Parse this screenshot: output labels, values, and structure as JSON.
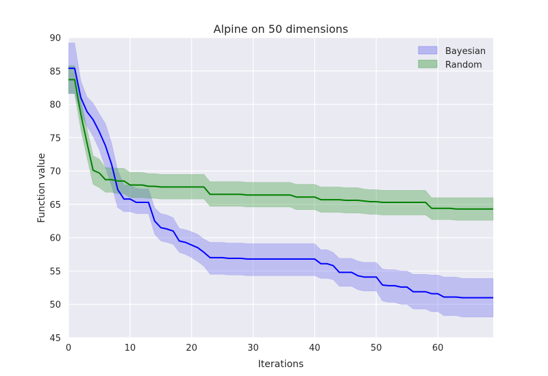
{
  "chart_data": {
    "type": "line",
    "title": "Alpine on 50 dimensions",
    "xlabel": "Iterations",
    "ylabel": "Function value",
    "xlim": [
      0,
      69
    ],
    "ylim": [
      45,
      90
    ],
    "xticks": [
      "0",
      "10",
      "20",
      "30",
      "40",
      "50",
      "60"
    ],
    "yticks": [
      "45",
      "50",
      "55",
      "60",
      "65",
      "70",
      "75",
      "80",
      "85",
      "90"
    ],
    "grid": true,
    "legend_position": "top-right",
    "series": [
      {
        "name": "Bayesian",
        "color": "#0000ff",
        "band_color": "#6e6ef0",
        "x": [
          0,
          1,
          2,
          3,
          4,
          5,
          6,
          7,
          8,
          9,
          10,
          11,
          12,
          13,
          14,
          15,
          16,
          17,
          18,
          19,
          20,
          21,
          22,
          23,
          24,
          25,
          26,
          27,
          28,
          29,
          30,
          31,
          32,
          33,
          34,
          35,
          36,
          37,
          38,
          39,
          40,
          41,
          42,
          43,
          44,
          45,
          46,
          47,
          48,
          49,
          50,
          51,
          52,
          53,
          54,
          55,
          56,
          57,
          58,
          59,
          60,
          61,
          62,
          63,
          64,
          65,
          66,
          67,
          68,
          69
        ],
        "values": [
          85.4,
          85.4,
          81.0,
          78.9,
          77.7,
          75.9,
          73.8,
          71.0,
          67.2,
          65.8,
          65.8,
          65.3,
          65.3,
          65.3,
          62.5,
          61.5,
          61.3,
          61.0,
          59.5,
          59.3,
          58.9,
          58.5,
          57.8,
          57.0,
          57.0,
          57.0,
          56.9,
          56.9,
          56.9,
          56.8,
          56.8,
          56.8,
          56.8,
          56.8,
          56.8,
          56.8,
          56.8,
          56.8,
          56.8,
          56.8,
          56.8,
          56.1,
          56.1,
          55.8,
          54.8,
          54.8,
          54.8,
          54.3,
          54.1,
          54.1,
          54.1,
          52.9,
          52.8,
          52.8,
          52.6,
          52.6,
          51.9,
          51.9,
          51.9,
          51.6,
          51.6,
          51.1,
          51.1,
          51.1,
          51.0,
          51.0,
          51.0,
          51.0,
          51.0,
          51.0
        ],
        "upper": [
          89.2,
          89.2,
          83.5,
          81.1,
          80.2,
          78.6,
          77.1,
          74.2,
          70.1,
          67.9,
          67.9,
          67.4,
          67.3,
          67.3,
          64.5,
          63.6,
          63.4,
          63.0,
          61.4,
          61.2,
          60.9,
          60.5,
          59.8,
          59.3,
          59.3,
          59.3,
          59.2,
          59.2,
          59.2,
          59.1,
          59.1,
          59.1,
          59.1,
          59.1,
          59.1,
          59.1,
          59.1,
          59.1,
          59.1,
          59.1,
          59.1,
          58.2,
          58.2,
          57.8,
          56.9,
          56.9,
          56.9,
          56.5,
          56.3,
          56.3,
          56.3,
          55.3,
          55.2,
          55.2,
          55.0,
          55.0,
          54.5,
          54.5,
          54.5,
          54.4,
          54.4,
          54.1,
          54.1,
          54.1,
          53.9,
          53.9,
          53.9,
          53.9,
          53.9,
          53.9
        ],
        "lower": [
          81.6,
          81.6,
          78.5,
          76.7,
          75.2,
          73.2,
          70.5,
          67.8,
          64.5,
          63.9,
          63.9,
          63.6,
          63.6,
          63.6,
          60.5,
          59.5,
          59.3,
          59.0,
          57.8,
          57.5,
          57.0,
          56.4,
          55.7,
          54.5,
          54.5,
          54.5,
          54.4,
          54.4,
          54.4,
          54.3,
          54.3,
          54.3,
          54.3,
          54.3,
          54.3,
          54.3,
          54.3,
          54.3,
          54.3,
          54.3,
          54.3,
          53.9,
          53.9,
          53.7,
          52.7,
          52.7,
          52.7,
          52.2,
          52.0,
          52.0,
          52.0,
          50.5,
          50.3,
          50.3,
          50.0,
          50.0,
          49.3,
          49.3,
          49.3,
          48.9,
          48.9,
          48.3,
          48.3,
          48.3,
          48.1,
          48.1,
          48.1,
          48.1,
          48.1,
          48.1
        ]
      },
      {
        "name": "Random",
        "color": "#008000",
        "band_color": "#3a9a3a",
        "x": [
          0,
          1,
          2,
          3,
          4,
          5,
          6,
          7,
          8,
          9,
          10,
          11,
          12,
          13,
          14,
          15,
          16,
          17,
          18,
          19,
          20,
          21,
          22,
          23,
          24,
          25,
          26,
          27,
          28,
          29,
          30,
          31,
          32,
          33,
          34,
          35,
          36,
          37,
          38,
          39,
          40,
          41,
          42,
          43,
          44,
          45,
          46,
          47,
          48,
          49,
          50,
          51,
          52,
          53,
          54,
          55,
          56,
          57,
          58,
          59,
          60,
          61,
          62,
          63,
          64,
          65,
          66,
          67,
          68,
          69
        ],
        "values": [
          83.7,
          83.7,
          78.5,
          74.2,
          70.1,
          69.7,
          68.7,
          68.7,
          68.5,
          68.5,
          67.9,
          67.9,
          67.9,
          67.7,
          67.7,
          67.6,
          67.6,
          67.6,
          67.6,
          67.6,
          67.6,
          67.6,
          67.6,
          66.5,
          66.5,
          66.5,
          66.5,
          66.5,
          66.5,
          66.4,
          66.4,
          66.4,
          66.4,
          66.4,
          66.4,
          66.4,
          66.4,
          66.1,
          66.1,
          66.1,
          66.1,
          65.7,
          65.7,
          65.7,
          65.7,
          65.6,
          65.6,
          65.6,
          65.5,
          65.4,
          65.4,
          65.3,
          65.3,
          65.3,
          65.3,
          65.3,
          65.3,
          65.3,
          65.3,
          64.4,
          64.4,
          64.4,
          64.4,
          64.3,
          64.3,
          64.3,
          64.3,
          64.3,
          64.3,
          64.3
        ],
        "upper": [
          85.8,
          85.8,
          80.7,
          76.4,
          72.3,
          71.8,
          70.5,
          70.5,
          70.4,
          70.4,
          69.8,
          69.8,
          69.8,
          69.6,
          69.6,
          69.5,
          69.5,
          69.5,
          69.5,
          69.5,
          69.5,
          69.5,
          69.5,
          68.4,
          68.4,
          68.4,
          68.4,
          68.4,
          68.4,
          68.3,
          68.3,
          68.3,
          68.3,
          68.3,
          68.3,
          68.3,
          68.3,
          68.0,
          68.0,
          68.0,
          68.0,
          67.6,
          67.6,
          67.6,
          67.6,
          67.5,
          67.5,
          67.5,
          67.3,
          67.2,
          67.2,
          67.1,
          67.1,
          67.1,
          67.1,
          67.1,
          67.1,
          67.1,
          67.1,
          66.0,
          66.0,
          66.0,
          66.0,
          66.0,
          66.0,
          66.0,
          66.0,
          66.0,
          66.0,
          66.0
        ],
        "lower": [
          81.6,
          81.6,
          76.2,
          72.0,
          68.0,
          67.5,
          66.8,
          66.8,
          66.6,
          66.6,
          66.0,
          66.0,
          66.0,
          65.9,
          65.9,
          65.8,
          65.8,
          65.8,
          65.8,
          65.8,
          65.8,
          65.8,
          65.8,
          64.7,
          64.7,
          64.7,
          64.7,
          64.7,
          64.7,
          64.6,
          64.6,
          64.6,
          64.6,
          64.6,
          64.6,
          64.6,
          64.6,
          64.2,
          64.2,
          64.2,
          64.2,
          63.8,
          63.8,
          63.8,
          63.8,
          63.7,
          63.7,
          63.7,
          63.6,
          63.5,
          63.5,
          63.4,
          63.4,
          63.4,
          63.4,
          63.4,
          63.4,
          63.4,
          63.4,
          62.7,
          62.7,
          62.7,
          62.7,
          62.6,
          62.6,
          62.6,
          62.6,
          62.6,
          62.6,
          62.6
        ]
      }
    ]
  }
}
